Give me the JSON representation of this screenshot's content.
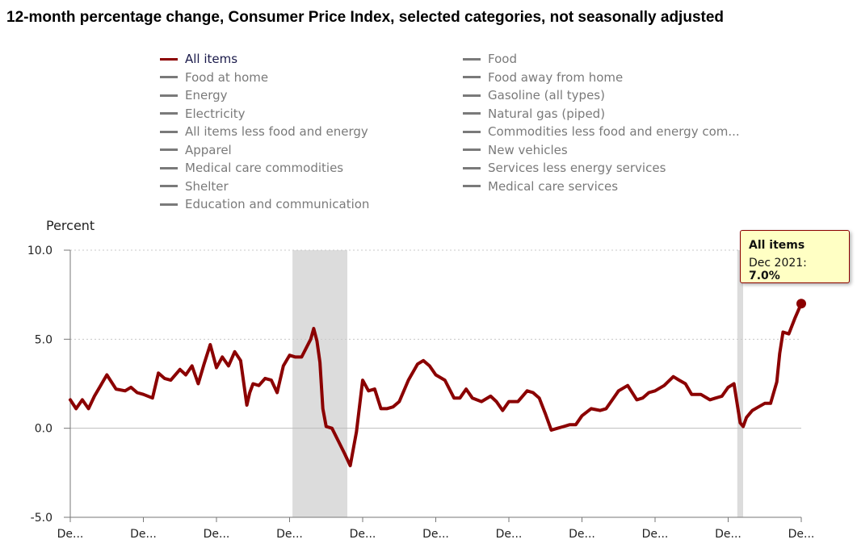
{
  "title": "12-month percentage change, Consumer Price Index, selected categories, not seasonally adjusted",
  "colors": {
    "active_series": "#8b0000",
    "inactive_legend": "#7a7a7a",
    "recession_shading": "#dcdcdc",
    "tooltip_bg": "#ffffc4"
  },
  "legend": {
    "left_column": [
      "All items",
      "Food at home",
      "Energy",
      "Electricity",
      "All items less food and energy",
      "Apparel",
      "Medical care commodities",
      "Shelter",
      "Education and communication"
    ],
    "right_column": [
      "Food",
      "Food away from home",
      "Gasoline (all types)",
      "Natural gas (piped)",
      "Commodities less food and energy com...",
      "New vehicles",
      "Services less energy services",
      "Medical care services"
    ],
    "active": "All items"
  },
  "tooltip": {
    "series": "All items",
    "label": "Dec 2021:",
    "value": "7.0%"
  },
  "chart_data": {
    "type": "line",
    "ylabel": "Percent",
    "ylim": [
      -5.0,
      10.0
    ],
    "yticks": [
      "10.0",
      "5.0",
      "0.0",
      "-5.0"
    ],
    "xlim": [
      2001.92,
      2021.92
    ],
    "xtick_labels": [
      "De...",
      "De...",
      "De...",
      "De...",
      "De...",
      "De...",
      "De...",
      "De...",
      "De...",
      "De...",
      "De..."
    ],
    "grid": true,
    "recessions": [
      [
        2008.0,
        2009.5
      ],
      [
        2020.17,
        2020.33
      ]
    ],
    "series": [
      {
        "name": "All items",
        "color": "#8b0000",
        "x": [
          2001.92,
          2002.08,
          2002.25,
          2002.42,
          2002.58,
          2002.75,
          2002.92,
          2003.17,
          2003.42,
          2003.58,
          2003.75,
          2003.92,
          2004.17,
          2004.33,
          2004.5,
          2004.67,
          2004.92,
          2005.08,
          2005.25,
          2005.42,
          2005.58,
          2005.75,
          2005.92,
          2006.08,
          2006.25,
          2006.42,
          2006.58,
          2006.75,
          2006.83,
          2006.92,
          2007.08,
          2007.25,
          2007.42,
          2007.58,
          2007.75,
          2007.92,
          2008.08,
          2008.25,
          2008.5,
          2008.58,
          2008.67,
          2008.75,
          2008.83,
          2008.92,
          2009.08,
          2009.25,
          2009.42,
          2009.58,
          2009.75,
          2009.92,
          2010.08,
          2010.25,
          2010.42,
          2010.58,
          2010.75,
          2010.92,
          2011.17,
          2011.42,
          2011.58,
          2011.75,
          2011.92,
          2012.17,
          2012.42,
          2012.58,
          2012.75,
          2012.92,
          2013.17,
          2013.42,
          2013.58,
          2013.75,
          2013.92,
          2014.17,
          2014.42,
          2014.58,
          2014.75,
          2014.92,
          2015.08,
          2015.25,
          2015.42,
          2015.58,
          2015.75,
          2015.92,
          2016.17,
          2016.42,
          2016.58,
          2016.75,
          2016.92,
          2017.17,
          2017.42,
          2017.58,
          2017.75,
          2017.92,
          2018.17,
          2018.42,
          2018.58,
          2018.75,
          2018.92,
          2019.17,
          2019.42,
          2019.58,
          2019.75,
          2019.92,
          2020.08,
          2020.25,
          2020.33,
          2020.42,
          2020.58,
          2020.75,
          2020.92,
          2021.08,
          2021.25,
          2021.33,
          2021.42,
          2021.58,
          2021.75,
          2021.92
        ],
        "y": [
          1.6,
          1.1,
          1.6,
          1.1,
          1.8,
          2.4,
          3.0,
          2.2,
          2.1,
          2.3,
          2.0,
          1.9,
          1.7,
          3.1,
          2.8,
          2.7,
          3.3,
          3.0,
          3.5,
          2.5,
          3.6,
          4.7,
          3.4,
          4.0,
          3.5,
          4.3,
          3.8,
          1.3,
          2.0,
          2.5,
          2.4,
          2.8,
          2.7,
          2.0,
          3.5,
          4.1,
          4.0,
          4.0,
          5.0,
          5.6,
          4.9,
          3.7,
          1.1,
          0.1,
          0.0,
          -0.7,
          -1.4,
          -2.1,
          -0.2,
          2.7,
          2.1,
          2.2,
          1.1,
          1.1,
          1.2,
          1.5,
          2.7,
          3.6,
          3.8,
          3.5,
          3.0,
          2.7,
          1.7,
          1.7,
          2.2,
          1.7,
          1.5,
          1.8,
          1.5,
          1.0,
          1.5,
          1.5,
          2.1,
          2.0,
          1.7,
          0.8,
          -0.1,
          0.0,
          0.1,
          0.2,
          0.2,
          0.7,
          1.1,
          1.0,
          1.1,
          1.6,
          2.1,
          2.4,
          1.6,
          1.7,
          2.0,
          2.1,
          2.4,
          2.9,
          2.7,
          2.5,
          1.9,
          1.9,
          1.6,
          1.7,
          1.8,
          2.3,
          2.5,
          0.3,
          0.1,
          0.6,
          1.0,
          1.2,
          1.4,
          1.4,
          2.6,
          4.2,
          5.4,
          5.3,
          6.2,
          7.0
        ]
      }
    ]
  }
}
